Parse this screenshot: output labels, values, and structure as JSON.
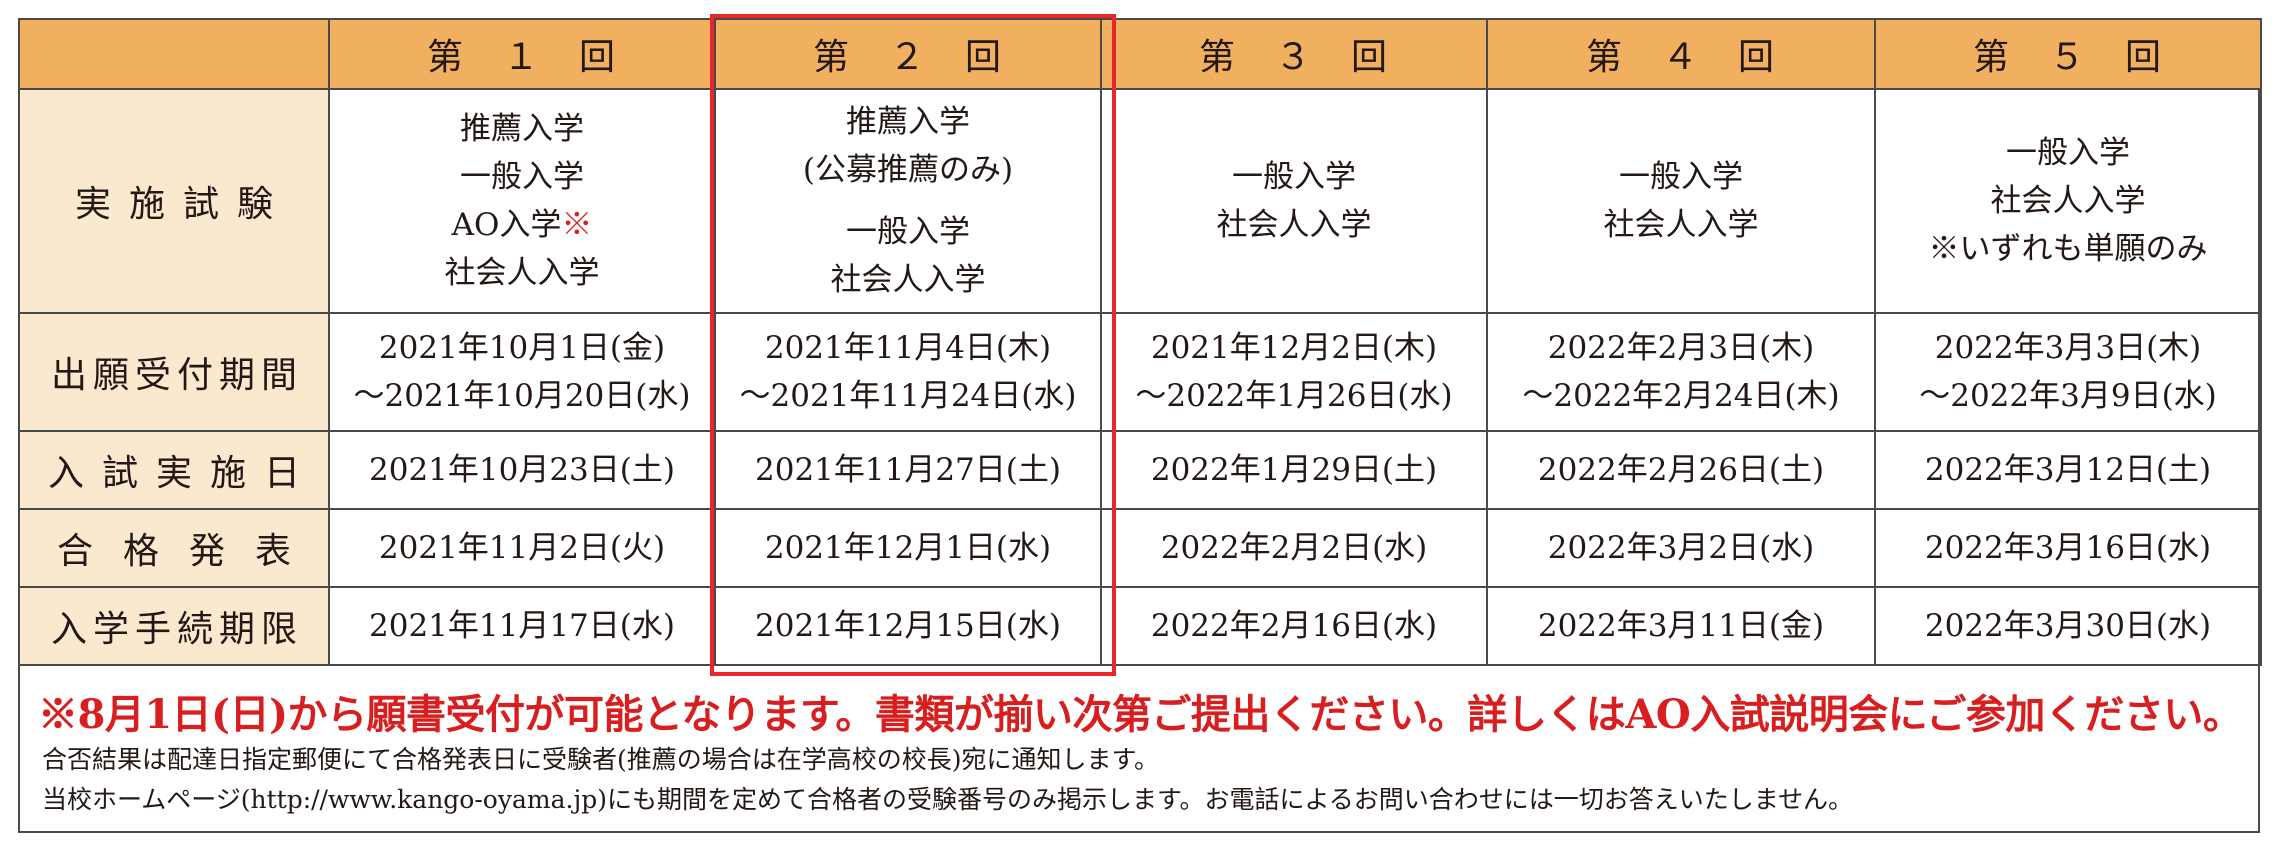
{
  "header": {
    "rounds": [
      "第　１　回",
      "第　２　回",
      "第　３　回",
      "第　４　回",
      "第　５　回"
    ]
  },
  "row_labels": {
    "exams": "実施試験",
    "apply": "出願受付期間",
    "exam_date": "入試実施日",
    "result": "合格発表",
    "procedure": "入学手続期限"
  },
  "exams": [
    {
      "lines": [
        "推薦入学",
        "一般入学",
        "AO入学",
        "社会人入学"
      ],
      "ao_mark": "※"
    },
    {
      "group1": [
        "推薦入学",
        "(公募推薦のみ)"
      ],
      "group2": [
        "一般入学",
        "社会人入学"
      ]
    },
    {
      "lines": [
        "一般入学",
        "社会人入学"
      ]
    },
    {
      "lines": [
        "一般入学",
        "社会人入学"
      ]
    },
    {
      "lines": [
        "一般入学",
        "社会人入学",
        "※いずれも単願のみ"
      ]
    }
  ],
  "apply": [
    [
      "2021年10月1日(金)",
      "～2021年10月20日(水)"
    ],
    [
      "2021年11月4日(木)",
      "～2021年11月24日(水)"
    ],
    [
      "2021年12月2日(木)",
      "～2022年1月26日(水)"
    ],
    [
      "2022年2月3日(木)",
      "～2022年2月24日(木)"
    ],
    [
      "2022年3月3日(木)",
      "～2022年3月9日(水)"
    ]
  ],
  "exam_date": [
    "2021年10月23日(土)",
    "2021年11月27日(土)",
    "2022年1月29日(土)",
    "2022年2月26日(土)",
    "2022年3月12日(土)"
  ],
  "result": [
    "2021年11月2日(火)",
    "2021年12月1日(水)",
    "2022年2月2日(水)",
    "2022年3月2日(水)",
    "2022年3月16日(水)"
  ],
  "procedure": [
    "2021年11月17日(水)",
    "2021年12月15日(水)",
    "2022年2月16日(水)",
    "2022年3月11日(金)",
    "2022年3月30日(水)"
  ],
  "notes": {
    "notice": "※8月1日(日)から願書受付が可能となります。書類が揃い次第ご提出ください。詳しくはAO入試説明会にご参加ください。",
    "line1": "合否結果は配達日指定郵便にて合格発表日に受験者(推薦の場合は在学高校の校長)宛に通知します。",
    "line2": "当校ホームページ(http://www.kango-oyama.jp)にも期間を定めて合格者の受験番号のみ掲示します。お電話によるお問い合わせには一切お答えいたしません。"
  },
  "colors": {
    "header_bg": "#f0b060",
    "label_bg": "#fbe9cf",
    "highlight": "#e8262b",
    "notice_text": "#d81e1e"
  }
}
